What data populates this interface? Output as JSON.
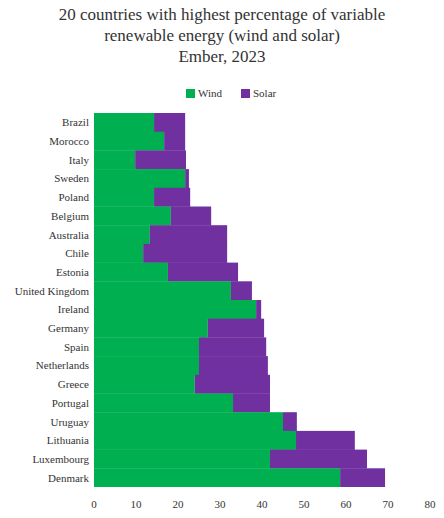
{
  "chart_data": {
    "type": "bar",
    "orientation": "horizontal",
    "stacked": true,
    "title": [
      "20 countries with highest percentage of variable",
      "renewable energy (wind and solar)"
    ],
    "subtitle": "Ember, 2023",
    "legend": "top",
    "grid": false,
    "categories": [
      "Brazil",
      "Morocco",
      "Italy",
      "Sweden",
      "Poland",
      "Belgium",
      "Australia",
      "Chile",
      "Estonia",
      "United Kingdom",
      "Ireland",
      "Germany",
      "Spain",
      "Netherlands",
      "Greece",
      "Portugal",
      "Uruguay",
      "Lithuania",
      "Luxembourg",
      "Denmark"
    ],
    "series": [
      {
        "name": "Wind",
        "color": "#00b050",
        "values": [
          14.3,
          16.7,
          9.8,
          21.7,
          14.3,
          18.3,
          13.3,
          11.7,
          17.6,
          32.6,
          38.6,
          27.1,
          25,
          25,
          24,
          33.1,
          45,
          48.1,
          41.9,
          58.6
        ]
      },
      {
        "name": "Solar",
        "color": "#7030a0",
        "values": [
          7.4,
          5,
          12.1,
          0.9,
          8.6,
          9.6,
          18.4,
          20,
          16.7,
          5,
          1.2,
          13.4,
          16,
          16.4,
          17.9,
          8.8,
          3.3,
          14,
          23.1,
          10.7
        ]
      }
    ],
    "xlim": [
      0,
      80
    ],
    "xticks": [
      0,
      10,
      20,
      30,
      40,
      50,
      60,
      70,
      80
    ]
  }
}
